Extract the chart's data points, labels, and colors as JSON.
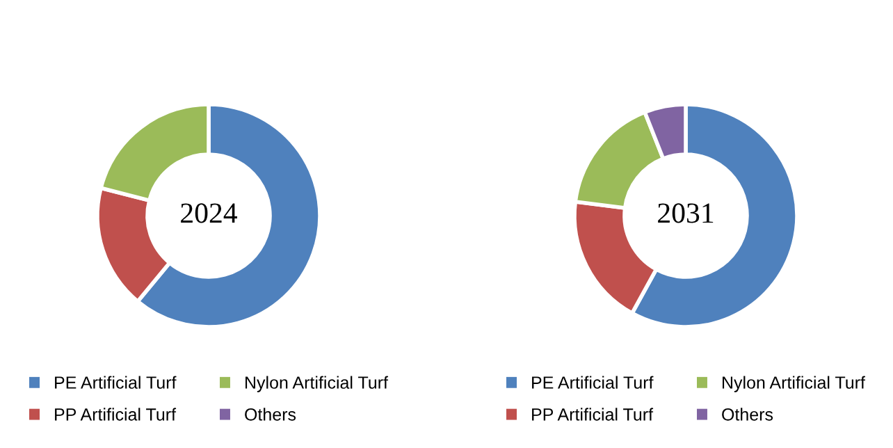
{
  "chart_data": [
    {
      "type": "donut",
      "title": "2024",
      "categories": [
        "PE Artificial Turf",
        "PP Artificial Turf",
        "Nylon Artificial Turf",
        "Others"
      ],
      "values": [
        61,
        18,
        21,
        0
      ],
      "colors": [
        "#4f81bd",
        "#c0504d",
        "#9bbb59",
        "#8064a2"
      ],
      "legend": "bottom"
    },
    {
      "type": "donut",
      "title": "2031",
      "categories": [
        "PE Artificial Turf",
        "PP Artificial Turf",
        "Nylon Artificial Turf",
        "Others"
      ],
      "values": [
        58,
        19,
        17,
        6
      ],
      "colors": [
        "#4f81bd",
        "#c0504d",
        "#9bbb59",
        "#8064a2"
      ],
      "legend": "bottom"
    }
  ]
}
